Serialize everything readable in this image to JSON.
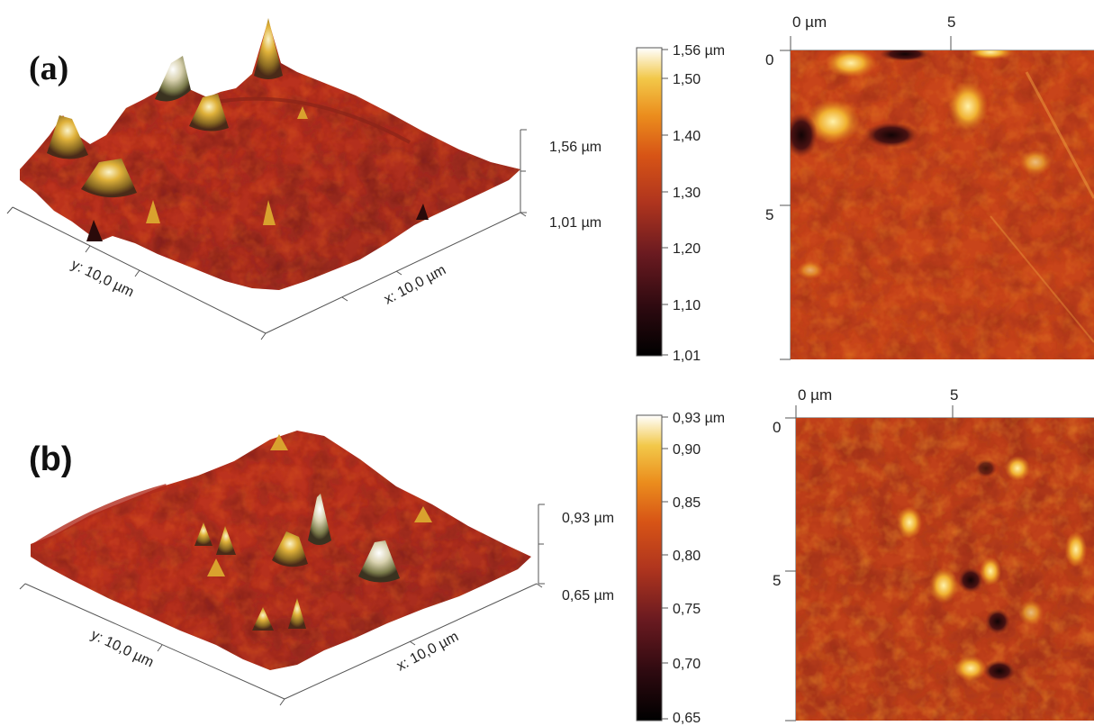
{
  "panels": [
    {
      "label": "(a)",
      "z_scale": {
        "top": "1,56 µm",
        "bottom": "1,01 µm"
      },
      "x_axis": "x: 10,0 µm",
      "y_axis": "y: 10,0 µm",
      "colorbar": {
        "max_label": "1,56 µm",
        "ticks": [
          "1,50",
          "1,40",
          "1,30",
          "1,20",
          "1,10",
          "1,01"
        ]
      },
      "map_ticks": {
        "top": [
          "0 µm",
          "5"
        ],
        "left": [
          "0",
          "5"
        ]
      }
    },
    {
      "label": "(b)",
      "z_scale": {
        "top": "0,93 µm",
        "bottom": "0,65 µm"
      },
      "x_axis": "x: 10,0 µm",
      "y_axis": "y: 10,0 µm",
      "colorbar": {
        "max_label": "0,93 µm",
        "ticks": [
          "0,90",
          "0,85",
          "0,80",
          "0,75",
          "0,70",
          "0,65"
        ]
      },
      "map_ticks": {
        "top": [
          "0 µm",
          "5"
        ],
        "left": [
          "0",
          "5"
        ]
      }
    }
  ],
  "colors": {
    "colormap": [
      "#050000",
      "#3a0d12",
      "#6e1e1f",
      "#a8321f",
      "#cf4a14",
      "#e4761a",
      "#eda42a",
      "#f3d56a",
      "#ffffff"
    ]
  }
}
